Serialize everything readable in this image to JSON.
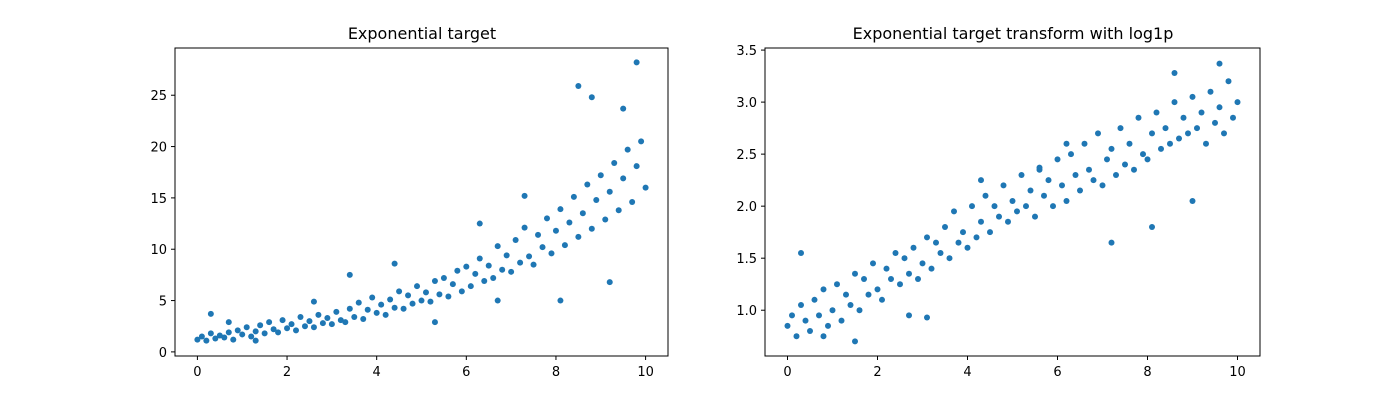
{
  "figure": {
    "background": "#ffffff",
    "marker_color": "#1f77b4"
  },
  "chart_data": [
    {
      "type": "scatter",
      "title": "Exponential target",
      "xlabel": "",
      "ylabel": "",
      "xlim": [
        -0.5,
        10.5
      ],
      "ylim": [
        -0.4,
        29.6
      ],
      "xticks": [
        0,
        2,
        4,
        6,
        8,
        10
      ],
      "yticks": [
        0,
        5,
        10,
        15,
        20,
        25
      ],
      "grid": false,
      "legend": "none",
      "series": [
        {
          "color": "#1f77b4",
          "x": [
            0.0,
            0.1,
            0.2,
            0.3,
            0.4,
            0.5,
            0.6,
            0.7,
            0.8,
            0.9,
            1.0,
            1.1,
            1.2,
            1.3,
            1.4,
            1.5,
            1.6,
            1.7,
            1.8,
            1.9,
            2.0,
            2.1,
            2.2,
            2.3,
            2.4,
            2.5,
            2.6,
            2.7,
            2.8,
            2.9,
            3.0,
            3.1,
            3.2,
            3.3,
            3.4,
            3.5,
            3.6,
            3.7,
            3.8,
            3.9,
            4.0,
            4.1,
            4.2,
            4.3,
            4.4,
            4.5,
            4.6,
            4.7,
            4.8,
            4.9,
            5.0,
            5.1,
            5.2,
            5.3,
            5.4,
            5.5,
            5.6,
            5.7,
            5.8,
            5.9,
            6.0,
            6.1,
            6.2,
            6.3,
            6.4,
            6.5,
            6.6,
            6.7,
            6.8,
            6.9,
            7.0,
            7.1,
            7.2,
            7.3,
            7.4,
            7.5,
            7.6,
            7.7,
            7.8,
            7.9,
            8.0,
            8.1,
            8.2,
            8.3,
            8.4,
            8.5,
            8.6,
            8.7,
            8.8,
            8.9,
            9.0,
            9.1,
            9.2,
            9.3,
            9.4,
            9.5,
            9.6,
            9.7,
            9.8,
            9.9,
            10.0,
            0.3,
            0.7,
            1.3,
            2.6,
            3.4,
            4.4,
            5.3,
            6.3,
            6.7,
            7.3,
            8.1,
            8.5,
            8.8,
            9.2,
            9.5,
            9.8
          ],
          "y": [
            1.2,
            1.5,
            1.1,
            1.8,
            1.3,
            1.6,
            1.4,
            1.9,
            1.2,
            2.1,
            1.7,
            2.4,
            1.5,
            2.0,
            2.6,
            1.8,
            2.9,
            2.2,
            1.9,
            3.1,
            2.3,
            2.7,
            2.1,
            3.4,
            2.5,
            3.0,
            2.4,
            3.6,
            2.8,
            3.3,
            2.7,
            3.9,
            3.1,
            2.9,
            4.2,
            3.4,
            4.8,
            3.2,
            4.1,
            5.3,
            3.8,
            4.6,
            3.6,
            5.1,
            4.3,
            5.9,
            4.2,
            5.5,
            4.7,
            6.4,
            5.0,
            5.8,
            4.9,
            6.9,
            5.6,
            7.2,
            5.4,
            6.6,
            7.9,
            5.9,
            8.3,
            6.4,
            7.6,
            9.1,
            6.9,
            8.4,
            7.2,
            10.3,
            8.0,
            9.4,
            7.8,
            10.9,
            8.7,
            12.1,
            9.3,
            8.5,
            11.4,
            10.2,
            13.0,
            9.6,
            11.8,
            13.9,
            10.4,
            12.6,
            15.1,
            11.2,
            13.5,
            16.3,
            12.0,
            14.8,
            17.2,
            12.9,
            15.6,
            18.4,
            13.8,
            16.9,
            19.7,
            14.6,
            18.1,
            20.5,
            16.0,
            3.7,
            2.9,
            1.1,
            4.9,
            7.5,
            8.6,
            2.9,
            12.5,
            5.0,
            15.2,
            5.0,
            25.9,
            24.8,
            6.8,
            23.7,
            28.2
          ]
        }
      ]
    },
    {
      "type": "scatter",
      "title": "Exponential target transform with log1p",
      "xlabel": "",
      "ylabel": "",
      "xlim": [
        -0.5,
        10.5
      ],
      "ylim": [
        0.56,
        3.52
      ],
      "xticks": [
        0,
        2,
        4,
        6,
        8,
        10
      ],
      "yticks": [
        1.0,
        1.5,
        2.0,
        2.5,
        3.0,
        3.5
      ],
      "ytick_labels": [
        "1.0",
        "1.5",
        "2.0",
        "2.5",
        "3.0",
        "3.5"
      ],
      "grid": false,
      "legend": "none",
      "series": [
        {
          "color": "#1f77b4",
          "x": [
            0.0,
            0.1,
            0.2,
            0.3,
            0.4,
            0.5,
            0.6,
            0.7,
            0.8,
            0.9,
            1.0,
            1.1,
            1.2,
            1.3,
            1.4,
            1.5,
            1.6,
            1.7,
            1.8,
            1.9,
            2.0,
            2.1,
            2.2,
            2.3,
            2.4,
            2.5,
            2.6,
            2.7,
            2.8,
            2.9,
            3.0,
            3.1,
            3.2,
            3.3,
            3.4,
            3.5,
            3.6,
            3.7,
            3.8,
            3.9,
            4.0,
            4.1,
            4.2,
            4.3,
            4.4,
            4.5,
            4.6,
            4.7,
            4.8,
            4.9,
            5.0,
            5.1,
            5.2,
            5.3,
            5.4,
            5.5,
            5.6,
            5.7,
            5.8,
            5.9,
            6.0,
            6.1,
            6.2,
            6.3,
            6.4,
            6.5,
            6.6,
            6.7,
            6.8,
            6.9,
            7.0,
            7.1,
            7.2,
            7.3,
            7.4,
            7.5,
            7.6,
            7.7,
            7.8,
            7.9,
            8.0,
            8.1,
            8.2,
            8.3,
            8.4,
            8.5,
            8.6,
            8.7,
            8.8,
            8.9,
            9.0,
            9.1,
            9.2,
            9.3,
            9.4,
            9.5,
            9.6,
            9.7,
            9.8,
            9.9,
            10.0,
            0.3,
            0.8,
            1.5,
            2.7,
            3.1,
            4.3,
            5.6,
            6.2,
            7.2,
            8.1,
            8.6,
            9.0,
            9.6
          ],
          "y": [
            0.85,
            0.95,
            0.75,
            1.05,
            0.9,
            0.8,
            1.1,
            0.95,
            1.2,
            0.85,
            1.0,
            1.25,
            0.9,
            1.15,
            1.05,
            1.35,
            1.0,
            1.3,
            1.15,
            1.45,
            1.2,
            1.1,
            1.4,
            1.3,
            1.55,
            1.25,
            1.5,
            1.35,
            1.6,
            1.3,
            1.45,
            1.7,
            1.4,
            1.65,
            1.55,
            1.8,
            1.5,
            1.95,
            1.65,
            1.75,
            1.6,
            2.0,
            1.7,
            1.85,
            2.1,
            1.75,
            2.0,
            1.9,
            2.2,
            1.85,
            2.05,
            1.95,
            2.3,
            2.0,
            2.15,
            1.9,
            2.35,
            2.1,
            2.25,
            2.0,
            2.45,
            2.2,
            2.05,
            2.5,
            2.3,
            2.15,
            2.6,
            2.35,
            2.25,
            2.7,
            2.2,
            2.45,
            2.55,
            2.3,
            2.75,
            2.4,
            2.6,
            2.35,
            2.85,
            2.5,
            2.45,
            2.7,
            2.9,
            2.55,
            2.75,
            2.6,
            3.0,
            2.65,
            2.85,
            2.7,
            3.05,
            2.75,
            2.9,
            2.6,
            3.1,
            2.8,
            2.95,
            2.7,
            3.2,
            2.85,
            3.0,
            1.55,
            0.75,
            0.7,
            0.95,
            0.93,
            2.25,
            2.37,
            2.6,
            1.65,
            1.8,
            3.28,
            2.05,
            3.37
          ]
        }
      ]
    }
  ]
}
